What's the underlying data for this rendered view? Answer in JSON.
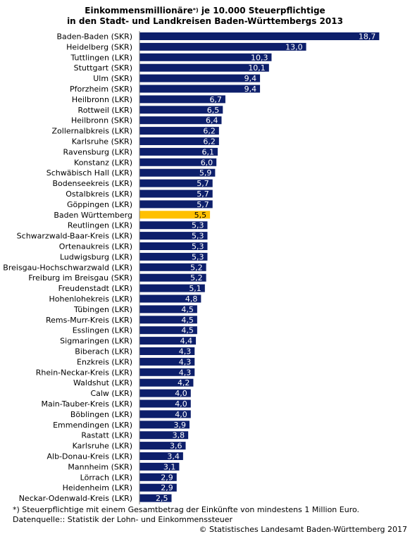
{
  "chart_data": {
    "type": "bar",
    "orientation": "horizontal",
    "title_line1": "Einkommensmillionäre",
    "title_sup": "*)",
    "title_line1_rest": " je 10.000 Steuerpflichtige",
    "title_line2": "in den Stadt- und Landkreisen Baden-Württembergs 2013",
    "categories": [
      "Baden-Baden (SKR)",
      "Heidelberg (SKR)",
      "Tuttlingen (LKR)",
      "Stuttgart (SKR)",
      "Ulm (SKR)",
      "Pforzheim (SKR)",
      "Heilbronn (LKR)",
      "Rottweil (LKR)",
      "Heilbronn (SKR)",
      "Zollernalbkreis (LKR)",
      "Karlsruhe (SKR)",
      "Ravensburg (LKR)",
      "Konstanz (LKR)",
      "Schwäbisch Hall (LKR)",
      "Bodenseekreis (LKR)",
      "Ostalbkreis (LKR)",
      "Göppingen (LKR)",
      "Baden Württemberg",
      "Reutlingen (LKR)",
      "Schwarzwald-Baar-Kreis (LKR)",
      "Ortenaukreis (LKR)",
      "Ludwigsburg (LKR)",
      "Breisgau-Hochschwarzwald (LKR)",
      "Freiburg im Breisgau (SKR)",
      "Freudenstadt (LKR)",
      "Hohenlohekreis (LKR)",
      "Tübingen (LKR)",
      "Rems-Murr-Kreis (LKR)",
      "Esslingen (LKR)",
      "Sigmaringen (LKR)",
      "Biberach (LKR)",
      "Enzkreis (LKR)",
      "Rhein-Neckar-Kreis (LKR)",
      "Waldshut (LKR)",
      "Calw (LKR)",
      "Main-Tauber-Kreis (LKR)",
      "Böblingen (LKR)",
      "Emmendingen (LKR)",
      "Rastatt (LKR)",
      "Karlsruhe (LKR)",
      "Alb-Donau-Kreis (LKR)",
      "Mannheim (SKR)",
      "Lörrach (LKR)",
      "Heidenheim (LKR)",
      "Neckar-Odenwald-Kreis (LKR)"
    ],
    "values": [
      18.7,
      13.0,
      10.3,
      10.1,
      9.4,
      9.4,
      6.7,
      6.5,
      6.4,
      6.2,
      6.2,
      6.1,
      6.0,
      5.9,
      5.7,
      5.7,
      5.7,
      5.5,
      5.3,
      5.3,
      5.3,
      5.3,
      5.2,
      5.2,
      5.1,
      4.8,
      4.5,
      4.5,
      4.5,
      4.4,
      4.3,
      4.3,
      4.3,
      4.2,
      4.0,
      4.0,
      4.0,
      3.9,
      3.8,
      3.6,
      3.4,
      3.1,
      2.9,
      2.9,
      2.5
    ],
    "value_labels": [
      "18,7",
      "13,0",
      "10,3",
      "10,1",
      "9,4",
      "9,4",
      "6,7",
      "6,5",
      "6,4",
      "6,2",
      "6,2",
      "6,1",
      "6,0",
      "5,9",
      "5,7",
      "5,7",
      "5,7",
      "5,5",
      "5,3",
      "5,3",
      "5,3",
      "5,3",
      "5,2",
      "5,2",
      "5,1",
      "4,8",
      "4,5",
      "4,5",
      "4,5",
      "4,4",
      "4,3",
      "4,3",
      "4,3",
      "4,2",
      "4,0",
      "4,0",
      "4,0",
      "3,9",
      "3,8",
      "3,6",
      "3,4",
      "3,1",
      "2,9",
      "2,9",
      "2,5"
    ],
    "highlight_category": "Baden Württemberg",
    "bar_color": "#0d1f6b",
    "highlight_color": "#ffc000",
    "xlim": [
      0,
      20
    ],
    "grid": false,
    "legend": "none"
  },
  "footnote": {
    "star": "*) Steuerpflichtige mit einem Gesamtbetrag der Einkünfte von mindestens 1 Million Euro.",
    "source": "Datenquelle:: Statistik der Lohn- und Einkommenssteuer",
    "copyright": "© Statistisches Landesamt Baden-Württemberg 2017"
  }
}
